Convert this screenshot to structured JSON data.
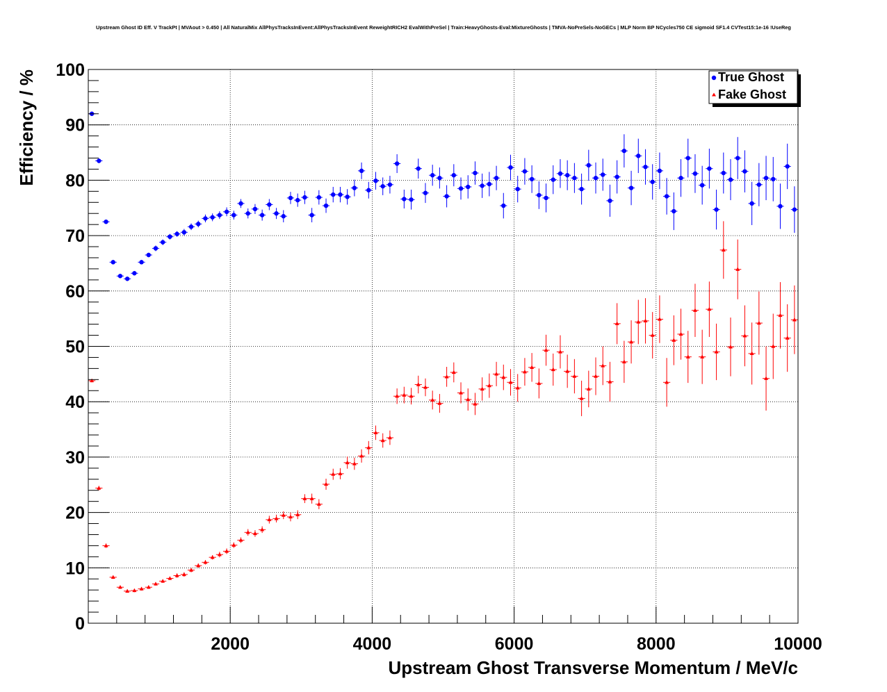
{
  "chart_data": {
    "type": "scatter",
    "title": "Upstream Ghost ID Eff. V TrackPt | MVAout > 0.450 | All NaturalMix AllPhysTracksInEvent:AllPhysTracksInEvent ReweightRICH2 EvalWithPreSel | Train:HeavyGhosts-Eval:MixtureGhosts | TMVA-NoPreSels-NoGECs | MLP Norm BP NCycles750 CE sigmoid SF1.4 CVTest15:1e-16 !UseReg",
    "xlabel": "Upstream Ghost Transverse Momentum / MeV/c",
    "ylabel": "Efficiency / %",
    "xlim": [
      0,
      10000
    ],
    "ylim": [
      0,
      100
    ],
    "x_ticks": [
      2000,
      4000,
      6000,
      8000,
      10000
    ],
    "y_ticks": [
      0,
      10,
      20,
      30,
      40,
      50,
      60,
      70,
      80,
      90,
      100
    ],
    "grid": true,
    "legend_position": "top-right",
    "bin_width": 100,
    "series": [
      {
        "name": "True Ghost",
        "color": "#0000ff",
        "marker": "circle",
        "x": [
          50,
          150,
          250,
          350,
          450,
          550,
          650,
          750,
          850,
          950,
          1050,
          1150,
          1250,
          1350,
          1450,
          1550,
          1650,
          1750,
          1850,
          1950,
          2050,
          2150,
          2250,
          2350,
          2450,
          2550,
          2650,
          2750,
          2850,
          2950,
          3050,
          3150,
          3250,
          3350,
          3450,
          3550,
          3650,
          3750,
          3850,
          3950,
          4050,
          4150,
          4250,
          4350,
          4450,
          4550,
          4650,
          4750,
          4850,
          4950,
          5050,
          5150,
          5250,
          5350,
          5450,
          5550,
          5650,
          5750,
          5850,
          5950,
          6050,
          6150,
          6250,
          6350,
          6450,
          6550,
          6650,
          6750,
          6850,
          6950,
          7050,
          7150,
          7250,
          7350,
          7450,
          7550,
          7650,
          7750,
          7850,
          7950,
          8050,
          8150,
          8250,
          8350,
          8450,
          8550,
          8650,
          8750,
          8850,
          8950,
          9050,
          9150,
          9250,
          9350,
          9450,
          9550,
          9650,
          9750,
          9850,
          9950
        ],
        "y": [
          92.0,
          83.5,
          72.5,
          65.2,
          62.7,
          62.2,
          63.2,
          65.2,
          66.5,
          67.7,
          68.8,
          69.8,
          70.3,
          70.6,
          71.6,
          72.1,
          73.1,
          73.3,
          73.7,
          74.3,
          73.7,
          75.8,
          74.0,
          74.8,
          73.7,
          75.6,
          74.0,
          73.5,
          76.8,
          76.4,
          76.9,
          73.7,
          76.9,
          75.4,
          77.4,
          77.4,
          77.0,
          78.6,
          81.7,
          78.2,
          79.9,
          78.9,
          79.2,
          83.0,
          76.6,
          76.5,
          82.1,
          77.7,
          80.9,
          80.4,
          77.1,
          80.9,
          78.5,
          78.8,
          81.3,
          79.0,
          79.3,
          80.4,
          75.4,
          82.3,
          78.4,
          81.6,
          80.2,
          77.3,
          76.8,
          80.1,
          81.2,
          80.9,
          80.4,
          78.4,
          82.7,
          80.4,
          81.0,
          76.3,
          80.6,
          85.3,
          78.6,
          84.4,
          82.4,
          79.7,
          81.7,
          77.1,
          74.4,
          80.4,
          84.0,
          81.2,
          79.1,
          82.1,
          74.7,
          81.3,
          80.1,
          84.0,
          81.6,
          75.8,
          79.2,
          80.4,
          80.2,
          75.3,
          82.5,
          74.7
        ],
        "yerr": [
          0.3,
          0.4,
          0.4,
          0.4,
          0.4,
          0.4,
          0.4,
          0.4,
          0.4,
          0.5,
          0.5,
          0.5,
          0.5,
          0.6,
          0.6,
          0.6,
          0.7,
          0.7,
          0.7,
          0.8,
          0.8,
          0.8,
          0.9,
          0.9,
          1.0,
          1.0,
          1.0,
          1.1,
          1.1,
          1.2,
          1.2,
          1.3,
          1.3,
          1.3,
          1.4,
          1.4,
          1.4,
          1.5,
          1.5,
          1.5,
          1.6,
          1.6,
          1.6,
          1.7,
          1.7,
          1.8,
          1.8,
          1.8,
          1.9,
          1.9,
          2.0,
          2.0,
          2.0,
          2.1,
          2.1,
          2.2,
          2.2,
          2.2,
          2.3,
          2.3,
          2.4,
          2.4,
          2.5,
          2.5,
          2.6,
          2.6,
          2.6,
          2.7,
          2.7,
          2.8,
          2.8,
          2.8,
          2.9,
          2.9,
          3.0,
          3.0,
          3.1,
          3.1,
          3.2,
          3.2,
          3.3,
          3.3,
          3.4,
          3.4,
          3.5,
          3.5,
          3.5,
          3.6,
          3.6,
          3.7,
          3.7,
          3.8,
          3.8,
          3.9,
          3.9,
          4.0,
          4.0,
          4.1,
          4.1,
          4.2
        ]
      },
      {
        "name": "Fake Ghost",
        "color": "#ff0000",
        "marker": "triangle",
        "x": [
          50,
          150,
          250,
          350,
          450,
          550,
          650,
          750,
          850,
          950,
          1050,
          1150,
          1250,
          1350,
          1450,
          1550,
          1650,
          1750,
          1850,
          1950,
          2050,
          2150,
          2250,
          2350,
          2450,
          2550,
          2650,
          2750,
          2850,
          2950,
          3050,
          3150,
          3250,
          3350,
          3450,
          3550,
          3650,
          3750,
          3850,
          3950,
          4050,
          4150,
          4250,
          4350,
          4450,
          4550,
          4650,
          4750,
          4850,
          4950,
          5050,
          5150,
          5250,
          5350,
          5450,
          5550,
          5650,
          5750,
          5850,
          5950,
          6050,
          6150,
          6250,
          6350,
          6450,
          6550,
          6650,
          6750,
          6850,
          6950,
          7050,
          7150,
          7250,
          7350,
          7450,
          7550,
          7650,
          7750,
          7850,
          7950,
          8050,
          8150,
          8250,
          8350,
          8450,
          8550,
          8650,
          8750,
          8850,
          8950,
          9050,
          9150,
          9250,
          9350,
          9450,
          9550,
          9650,
          9750,
          9850,
          9950
        ],
        "y": [
          43.8,
          24.4,
          14.0,
          8.3,
          6.5,
          5.8,
          5.9,
          6.2,
          6.5,
          7.1,
          7.6,
          8.1,
          8.6,
          8.8,
          9.6,
          10.4,
          11.0,
          11.9,
          12.4,
          13.0,
          14.1,
          15.0,
          16.4,
          16.2,
          16.9,
          18.7,
          18.9,
          19.5,
          19.2,
          19.6,
          22.5,
          22.5,
          21.5,
          25.1,
          26.9,
          27.0,
          29.0,
          28.8,
          30.2,
          31.7,
          34.4,
          33.0,
          33.5,
          41.0,
          41.2,
          41.0,
          43.1,
          42.6,
          40.3,
          39.7,
          44.5,
          45.3,
          41.6,
          40.4,
          39.6,
          42.3,
          42.9,
          45.0,
          44.4,
          43.5,
          42.5,
          45.4,
          46.2,
          43.3,
          49.3,
          45.8,
          49.0,
          45.5,
          44.6,
          40.6,
          42.3,
          44.6,
          46.5,
          43.6,
          54.1,
          47.2,
          50.8,
          54.4,
          54.6,
          52.0,
          54.9,
          43.5,
          51.1,
          52.2,
          48.1,
          56.5,
          48.1,
          56.7,
          49.0,
          67.4,
          49.9,
          63.9,
          51.9,
          48.7,
          54.2,
          44.2,
          50.0,
          55.6,
          51.5,
          54.8
        ],
        "yerr": [
          0.3,
          0.4,
          0.4,
          0.3,
          0.3,
          0.3,
          0.3,
          0.3,
          0.3,
          0.3,
          0.3,
          0.3,
          0.4,
          0.4,
          0.4,
          0.4,
          0.4,
          0.4,
          0.5,
          0.5,
          0.5,
          0.5,
          0.6,
          0.6,
          0.6,
          0.7,
          0.7,
          0.7,
          0.8,
          0.8,
          0.8,
          0.9,
          0.9,
          1.0,
          1.0,
          1.0,
          1.1,
          1.1,
          1.2,
          1.2,
          1.3,
          1.3,
          1.3,
          1.4,
          1.5,
          1.5,
          1.6,
          1.6,
          1.7,
          1.7,
          1.8,
          1.8,
          1.9,
          2.0,
          2.0,
          2.1,
          2.2,
          2.2,
          2.3,
          2.4,
          2.5,
          2.5,
          2.6,
          2.7,
          2.8,
          2.9,
          3.0,
          3.0,
          3.1,
          3.2,
          3.3,
          3.4,
          3.5,
          3.6,
          3.7,
          3.8,
          3.9,
          4.0,
          4.1,
          4.2,
          4.3,
          4.4,
          4.5,
          4.6,
          4.7,
          4.8,
          4.9,
          5.0,
          5.1,
          5.2,
          5.3,
          5.4,
          5.5,
          5.6,
          5.7,
          5.8,
          5.9,
          6.0,
          6.1,
          6.2
        ]
      }
    ]
  }
}
